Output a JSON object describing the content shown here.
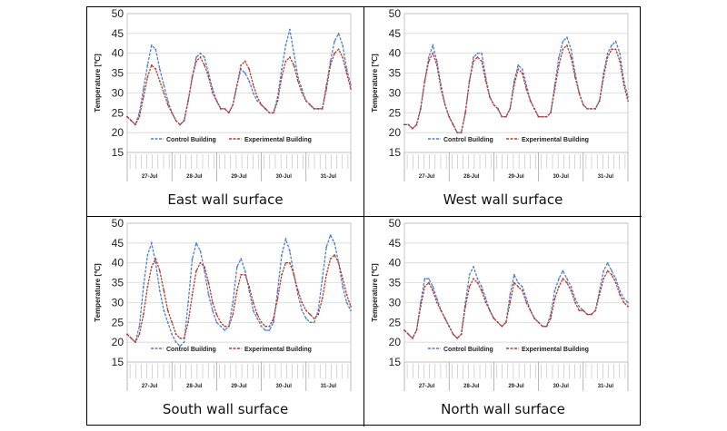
{
  "figure": {
    "colors": {
      "control": "#4a7fd4",
      "experimental": "#c0392b",
      "grid": "#d0d0d0"
    }
  },
  "chart_data": [
    {
      "type": "line",
      "caption": "East wall surface",
      "ylabel": "Temperature [℃]",
      "ylim": [
        15,
        50
      ],
      "yticks": [
        15,
        20,
        25,
        30,
        35,
        40,
        45,
        50
      ],
      "xlabels": [
        "27-Jul",
        "28-Jul",
        "29-Jul",
        "30-Jul",
        "31-Jul"
      ],
      "legend": {
        "placement": "bottom-center",
        "entries": [
          "Control Building",
          "Experimental Building"
        ]
      },
      "series": [
        {
          "name": "Control Building",
          "values": [
            24,
            23,
            22,
            25,
            31,
            37,
            42,
            41,
            36,
            32,
            28,
            25,
            23,
            22,
            23,
            28,
            34,
            39,
            40,
            39,
            35,
            31,
            28,
            26,
            26,
            25,
            27,
            32,
            36,
            35,
            33,
            30,
            28,
            27,
            26,
            25,
            25,
            29,
            36,
            42,
            46,
            40,
            34,
            31,
            28,
            27,
            26,
            26,
            26,
            32,
            38,
            43,
            45,
            42,
            36,
            32
          ]
        },
        {
          "name": "Experimental Building",
          "values": [
            24,
            23,
            22,
            24,
            29,
            34,
            37,
            36,
            33,
            30,
            27,
            25,
            23,
            22,
            23,
            28,
            34,
            38,
            39,
            37,
            34,
            30,
            28,
            26,
            26,
            25,
            27,
            32,
            37,
            38,
            36,
            32,
            29,
            27,
            26,
            25,
            25,
            28,
            34,
            38,
            39,
            37,
            33,
            30,
            28,
            27,
            26,
            26,
            26,
            31,
            37,
            40,
            41,
            39,
            35,
            31
          ]
        }
      ]
    },
    {
      "type": "line",
      "caption": "West wall surface",
      "ylabel": "Temperature [℃]",
      "ylim": [
        15,
        50
      ],
      "yticks": [
        15,
        20,
        25,
        30,
        35,
        40,
        45,
        50
      ],
      "xlabels": [
        "27-Jul",
        "28-Jul",
        "29-Jul",
        "30-Jul",
        "31-Jul"
      ],
      "legend": {
        "placement": "bottom-center",
        "entries": [
          "Control Building",
          "Experimental Building"
        ]
      },
      "series": [
        {
          "name": "Control Building",
          "values": [
            22,
            22,
            21,
            22,
            26,
            33,
            39,
            42,
            38,
            32,
            27,
            24,
            22,
            20,
            20,
            25,
            33,
            39,
            40,
            40,
            34,
            29,
            27,
            26,
            24,
            24,
            26,
            33,
            37,
            36,
            32,
            28,
            26,
            24,
            24,
            24,
            25,
            32,
            39,
            43,
            44,
            41,
            35,
            30,
            27,
            26,
            26,
            26,
            28,
            35,
            40,
            42,
            43,
            40,
            33,
            29
          ]
        },
        {
          "name": "Experimental Building",
          "values": [
            22,
            22,
            21,
            22,
            26,
            33,
            38,
            40,
            37,
            31,
            27,
            24,
            22,
            20,
            20,
            25,
            33,
            38,
            39,
            38,
            33,
            29,
            27,
            26,
            24,
            24,
            26,
            32,
            36,
            35,
            31,
            28,
            26,
            24,
            24,
            24,
            25,
            31,
            37,
            41,
            42,
            39,
            34,
            30,
            27,
            26,
            26,
            26,
            28,
            34,
            39,
            41,
            41,
            38,
            32,
            28
          ]
        }
      ]
    },
    {
      "type": "line",
      "caption": "South wall surface",
      "ylabel": "Temperature [℃]",
      "ylim": [
        15,
        50
      ],
      "yticks": [
        15,
        20,
        25,
        30,
        35,
        40,
        45,
        50
      ],
      "xlabels": [
        "27-Jul",
        "28-Jul",
        "29-Jul",
        "30-Jul",
        "31-Jul"
      ],
      "legend": {
        "placement": "bottom-center",
        "entries": [
          "Control Building",
          "Experimental Building"
        ]
      },
      "series": [
        {
          "name": "Control Building",
          "values": [
            22,
            21,
            20,
            24,
            34,
            42,
            45,
            40,
            33,
            28,
            25,
            22,
            20,
            19,
            20,
            30,
            41,
            45,
            43,
            38,
            32,
            28,
            25,
            24,
            23,
            24,
            30,
            39,
            41,
            38,
            33,
            28,
            26,
            24,
            23,
            23,
            25,
            33,
            42,
            46,
            43,
            37,
            32,
            28,
            26,
            25,
            25,
            28,
            36,
            44,
            47,
            45,
            40,
            34,
            30,
            28
          ]
        },
        {
          "name": "Experimental Building",
          "values": [
            22,
            21,
            20,
            22,
            27,
            34,
            39,
            41,
            38,
            33,
            28,
            25,
            22,
            21,
            21,
            25,
            32,
            38,
            40,
            39,
            35,
            30,
            27,
            25,
            24,
            24,
            27,
            33,
            37,
            37,
            34,
            30,
            27,
            25,
            24,
            24,
            26,
            31,
            37,
            40,
            40,
            37,
            33,
            30,
            28,
            27,
            26,
            27,
            31,
            37,
            41,
            42,
            40,
            36,
            32,
            29
          ]
        }
      ]
    },
    {
      "type": "line",
      "caption": "North wall surface",
      "ylabel": "Temperature [℃]",
      "ylim": [
        15,
        50
      ],
      "yticks": [
        15,
        20,
        25,
        30,
        35,
        40,
        45,
        50
      ],
      "xlabels": [
        "27-Jul",
        "28-Jul",
        "29-Jul",
        "30-Jul",
        "31-Jul"
      ],
      "legend": {
        "placement": "bottom-center",
        "entries": [
          "Control Building",
          "Experimental Building"
        ]
      },
      "series": [
        {
          "name": "Control Building",
          "values": [
            23,
            22,
            21,
            23,
            30,
            36,
            36,
            34,
            31,
            28,
            26,
            24,
            22,
            21,
            22,
            30,
            37,
            39,
            36,
            34,
            31,
            28,
            26,
            25,
            24,
            25,
            32,
            37,
            35,
            34,
            31,
            28,
            26,
            25,
            24,
            24,
            27,
            33,
            36,
            38,
            36,
            34,
            31,
            29,
            28,
            27,
            27,
            28,
            33,
            38,
            40,
            38,
            36,
            33,
            31,
            30
          ]
        },
        {
          "name": "Experimental Building",
          "values": [
            23,
            22,
            21,
            23,
            29,
            34,
            35,
            33,
            30,
            28,
            26,
            24,
            22,
            21,
            22,
            29,
            34,
            36,
            35,
            33,
            30,
            28,
            26,
            25,
            24,
            25,
            30,
            35,
            34,
            33,
            30,
            28,
            26,
            25,
            24,
            24,
            26,
            31,
            34,
            36,
            35,
            33,
            30,
            28,
            28,
            27,
            27,
            28,
            32,
            36,
            38,
            37,
            35,
            32,
            30,
            29
          ]
        }
      ]
    }
  ]
}
